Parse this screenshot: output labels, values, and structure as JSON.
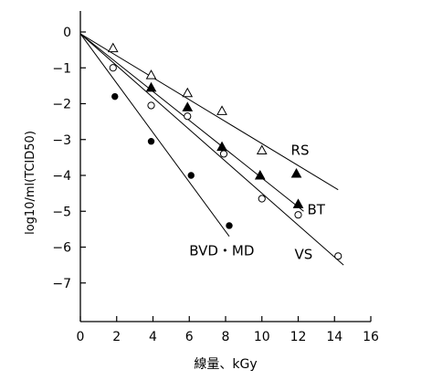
{
  "chart_data": {
    "type": "scatter",
    "xlabel": "線量、kGy",
    "ylabel": "log10/ml(TCID50)",
    "xlim": [
      0,
      16
    ],
    "ylim": [
      -8,
      0.5
    ],
    "xticks": [
      0,
      2,
      4,
      6,
      8,
      10,
      12,
      14,
      16
    ],
    "yticks": [
      0,
      -1,
      -2,
      -3,
      -4,
      -5,
      -6,
      -7
    ],
    "xtick_labels": [
      "0",
      "2",
      "4",
      "6",
      "8",
      "10",
      "12",
      "14",
      "16"
    ],
    "ytick_labels": [
      "0",
      "−1",
      "−2",
      "−3",
      "−4",
      "−5",
      "−6",
      "−7"
    ],
    "grid": false,
    "series": [
      {
        "name": "RS",
        "marker": "open-triangle",
        "points": [
          [
            1.8,
            -0.45
          ],
          [
            3.9,
            -1.2
          ],
          [
            5.9,
            -1.7
          ],
          [
            7.8,
            -2.2
          ],
          [
            10.0,
            -3.3
          ]
        ],
        "fit": [
          [
            0,
            -0.05
          ],
          [
            14.2,
            -4.4
          ]
        ],
        "label_at": [
          11.6,
          -3.3
        ]
      },
      {
        "name": "BT",
        "marker": "filled-triangle",
        "points": [
          [
            3.9,
            -1.55
          ],
          [
            5.9,
            -2.1
          ],
          [
            7.8,
            -3.2
          ],
          [
            9.9,
            -4.0
          ],
          [
            11.9,
            -3.95
          ],
          [
            12.0,
            -4.8
          ]
        ],
        "fit": [
          [
            0,
            -0.05
          ],
          [
            12.3,
            -5.0
          ]
        ],
        "label_at": [
          12.5,
          -4.95
        ]
      },
      {
        "name": "VS",
        "marker": "open-circle",
        "points": [
          [
            1.8,
            -1.0
          ],
          [
            3.9,
            -2.05
          ],
          [
            5.9,
            -2.35
          ],
          [
            7.9,
            -3.4
          ],
          [
            10.0,
            -4.65
          ],
          [
            12.0,
            -5.1
          ],
          [
            14.2,
            -6.25
          ]
        ],
        "fit": [
          [
            0,
            -0.05
          ],
          [
            14.5,
            -6.5
          ]
        ],
        "label_at": [
          11.8,
          -6.2
        ]
      },
      {
        "name": "BVD・MD",
        "marker": "filled-circle",
        "points": [
          [
            1.9,
            -1.8
          ],
          [
            3.9,
            -3.05
          ],
          [
            6.1,
            -4.0
          ],
          [
            8.2,
            -5.4
          ]
        ],
        "fit": [
          [
            0,
            -0.05
          ],
          [
            8.2,
            -5.7
          ]
        ],
        "label_at": [
          6.0,
          -6.1
        ]
      }
    ]
  }
}
